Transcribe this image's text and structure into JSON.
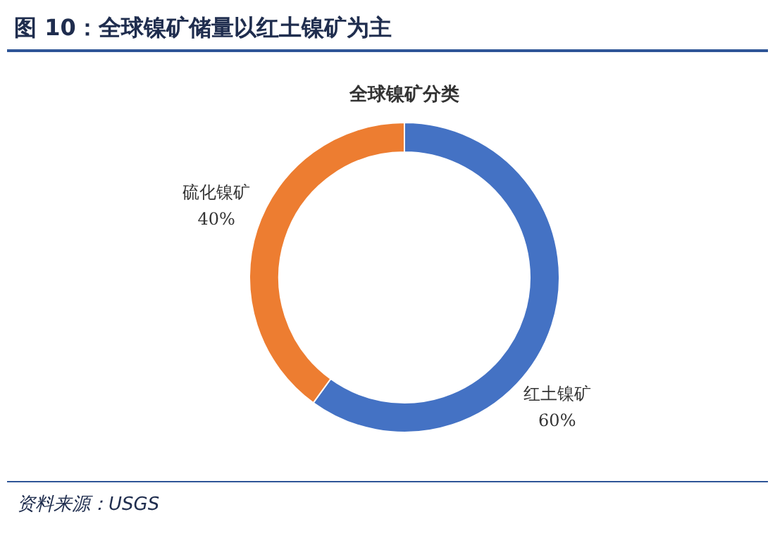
{
  "chart_data": {
    "type": "donut",
    "title": "图 10：全球镍矿储量以红土镍矿为主",
    "subtitle": "全球镍矿分类",
    "categories": [
      "红土镍矿",
      "硫化镍矿"
    ],
    "values": [
      60,
      40
    ],
    "colors": [
      "#4472c4",
      "#ed7d31"
    ],
    "value_labels": [
      "60%",
      "40%"
    ],
    "legend": false,
    "annotations": [
      "资料来源：USGS"
    ]
  }
}
